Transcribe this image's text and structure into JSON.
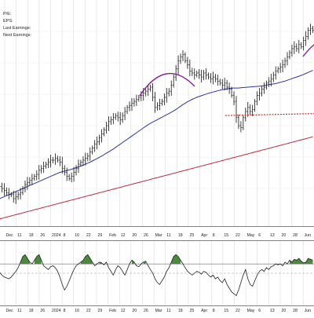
{
  "info_panel": {
    "pe_label": "P/E:",
    "eps_label": "EPS:",
    "last_earnings_label": "Last Earnings:",
    "next_earnings_label": "Next Earnings:"
  },
  "colors": {
    "bars": "#111111",
    "ma_short": "#2b35a0",
    "ma_long": "#c0283c",
    "arc": "#8a1f9e",
    "support": "#d11a1a",
    "osc_line": "#222222",
    "osc_fill": "#4a8a3c",
    "grid": "#d6d6d6"
  },
  "chart_data": [
    {
      "type": "ohlc",
      "panel": "price",
      "x_labels": [
        "Dec",
        "11",
        "18",
        "26",
        "2024",
        "8",
        "16",
        "22",
        "29",
        "Feb",
        "12",
        "20",
        "26",
        "Mar",
        "11",
        "18",
        "25",
        "Apr",
        "8",
        "15",
        "22",
        "May",
        "6",
        "13",
        "20",
        "28",
        "Jun"
      ],
      "series": [
        {
          "role": "price bars",
          "values": [
            18,
            17,
            16,
            15,
            14,
            14,
            12,
            13,
            14,
            15,
            17,
            19,
            20,
            21,
            22,
            23,
            24,
            26,
            27,
            28,
            29,
            30,
            31,
            31,
            32,
            31,
            30,
            27,
            25,
            23,
            22,
            23,
            25,
            27,
            29,
            30,
            31,
            32,
            33,
            35,
            37,
            39,
            40,
            42,
            44,
            46,
            48,
            50,
            51,
            52,
            53,
            52,
            51,
            53,
            55,
            57,
            58,
            59,
            60,
            61,
            62,
            63,
            64,
            65,
            66,
            67,
            62,
            57,
            58,
            59,
            60,
            62,
            64,
            65,
            68,
            72,
            76,
            80,
            82,
            83,
            80,
            78,
            75,
            74,
            73,
            74,
            73,
            72,
            74,
            73,
            72,
            71,
            72,
            71,
            70,
            69,
            68,
            69,
            67,
            66,
            63,
            60,
            52,
            48,
            47,
            52,
            55,
            57,
            55,
            56,
            60,
            63,
            64,
            66,
            67,
            69,
            70,
            71,
            73,
            75,
            76,
            77,
            78,
            80,
            82,
            84,
            86,
            87,
            86,
            88,
            87,
            90,
            92,
            95,
            96,
            95
          ]
        },
        {
          "role": "moving average (short)",
          "values": [
            12,
            12.5,
            13,
            13.5,
            14,
            14.5,
            15,
            15.5,
            16,
            16.5,
            17,
            17.5,
            18,
            18.5,
            19,
            19.5,
            20,
            20.5,
            21,
            21.5,
            22,
            22.5,
            23,
            23.5,
            24,
            24.5,
            25,
            25.3,
            25.6,
            25.9,
            26.2,
            26.5,
            26.9,
            27.3,
            27.7,
            28.1,
            28.5,
            29.0,
            29.5,
            30.0,
            30.6,
            31.2,
            31.8,
            32.4,
            33.0,
            33.7,
            34.4,
            35.1,
            35.8,
            36.5,
            37.3,
            38.1,
            38.9,
            39.7,
            40.5,
            41.3,
            42.1,
            42.9,
            43.7,
            44.5,
            45.3,
            46.1,
            46.9,
            47.7,
            48.5,
            49.2,
            49.8,
            50.4,
            51.0,
            51.6,
            52.2,
            52.8,
            53.4,
            54.0,
            54.6,
            55.3,
            56.0,
            56.8,
            57.6,
            58.4,
            59.1,
            59.8,
            60.4,
            61.0,
            61.5,
            62.0,
            62.4,
            62.8,
            63.2,
            63.6,
            64.0,
            64.3,
            64.6,
            64.9,
            65.2,
            65.5,
            65.8,
            66.0,
            66.2,
            66.4,
            66.5,
            66.6,
            66.6,
            66.6,
            66.7,
            66.8,
            66.9,
            67.0,
            67.1,
            67.2,
            67.3,
            67.4,
            67.5,
            67.6,
            67.8,
            68.0,
            68.2,
            68.4,
            68.6,
            68.8,
            69.1,
            69.4,
            69.7,
            70.0,
            70.4,
            70.8,
            71.2,
            71.6,
            72.0,
            72.4,
            72.8,
            73.3,
            73.8,
            74.3,
            74.8,
            75.3
          ]
        },
        {
          "role": "moving average (long)",
          "values": [
            2,
            2.3,
            2.6,
            2.9,
            3.2,
            3.5,
            3.8,
            4.1,
            4.4,
            4.7,
            5.0,
            5.3,
            5.6,
            5.9,
            6.2,
            6.5,
            6.8,
            7.1,
            7.4,
            7.7,
            8.0,
            8.3,
            8.6,
            8.9,
            9.2,
            9.5,
            9.8,
            10.1,
            10.4,
            10.7,
            11.0,
            11.3,
            11.6,
            11.9,
            12.2,
            12.5,
            12.8,
            13.1,
            13.4,
            13.7,
            14.0,
            14.3,
            14.6,
            14.9,
            15.2,
            15.5,
            15.8,
            16.1,
            16.4,
            16.7,
            17.0,
            17.3,
            17.6,
            17.9,
            18.2,
            18.5,
            18.8,
            19.1,
            19.4,
            19.7,
            20.0,
            20.3,
            20.6,
            20.9,
            21.2,
            21.5,
            21.8,
            22.1,
            22.4,
            22.7,
            23.0,
            23.3,
            23.6,
            23.9,
            24.2,
            24.5,
            24.8,
            25.1,
            25.4,
            25.7,
            26.0,
            26.3,
            26.6,
            26.9,
            27.2,
            27.5,
            27.8,
            28.1,
            28.4,
            28.7,
            29.0,
            29.3,
            29.6,
            29.9,
            30.2,
            30.5,
            30.8,
            31.1,
            31.4,
            31.7,
            32.0,
            32.3,
            32.6,
            32.9,
            33.2,
            33.5,
            33.8,
            34.1,
            34.4,
            34.7,
            35.0,
            35.3,
            35.6,
            35.9,
            36.2,
            36.5,
            36.8,
            37.1,
            37.4,
            37.7,
            38.0,
            38.3,
            38.6,
            38.9,
            39.2,
            39.5,
            39.8,
            40.1,
            40.4,
            40.7,
            41.0,
            41.3,
            41.6,
            41.9,
            42.2,
            42.5
          ]
        }
      ],
      "support_level": 53
    },
    {
      "type": "area",
      "panel": "oscillator",
      "x_labels": [
        "Dec",
        "11",
        "18",
        "26",
        "2024",
        "8",
        "16",
        "22",
        "29",
        "Feb",
        "12",
        "20",
        "26",
        "Mar",
        "11",
        "18",
        "25",
        "Apr",
        "8",
        "15",
        "22",
        "May",
        "6",
        "13",
        "20",
        "28",
        "Jun"
      ],
      "series": [
        {
          "role": "oscillator",
          "values": [
            0.05,
            -0.1,
            -0.2,
            -0.25,
            -0.3,
            -0.2,
            -0.05,
            0.1,
            0.3,
            0.6,
            0.9,
            1.0,
            0.8,
            0.6,
            0.5,
            0.7,
            0.9,
            1.0,
            0.7,
            0.4,
            0.3,
            0.2,
            0.35,
            0.4,
            0.3,
            0.1,
            -0.2,
            -0.6,
            -0.9,
            -0.7,
            -0.4,
            -0.1,
            0.2,
            0.4,
            0.5,
            0.6,
            0.7,
            0.9,
            1.0,
            0.8,
            0.6,
            0.4,
            0.5,
            0.6,
            0.55,
            0.45,
            0.6,
            0.3,
            0.1,
            -0.1,
            0.2,
            0.4,
            0.3,
            0.1,
            -0.1,
            0.2,
            0.5,
            0.7,
            0.6,
            0.4,
            0.35,
            0.5,
            0.6,
            0.65,
            0.4,
            0.2,
            0.0,
            -0.3,
            -0.5,
            -0.6,
            -0.4,
            -0.2,
            0.1,
            0.3,
            0.6,
            0.9,
            1.0,
            0.9,
            0.7,
            0.5,
            0.3,
            0.1,
            0.0,
            -0.1,
            0.0,
            0.1,
            0.05,
            -0.05,
            0.1,
            0.05,
            -0.1,
            -0.2,
            -0.1,
            -0.3,
            -0.2,
            -0.4,
            -0.5,
            -0.3,
            -0.6,
            -0.8,
            -1.0,
            -1.1,
            -1.2,
            -0.9,
            -0.5,
            -0.1,
            0.2,
            -0.3,
            -0.6,
            -0.7,
            -0.4,
            -0.1,
            0.1,
            0.2,
            0.1,
            0.3,
            0.2,
            0.35,
            0.4,
            0.5,
            0.45,
            0.5,
            0.4,
            0.6,
            0.5,
            0.7,
            0.6,
            0.75,
            0.7,
            0.8,
            0.65,
            0.55,
            0.6,
            0.8,
            0.75,
            0.7
          ]
        }
      ],
      "threshold": 0.5
    }
  ]
}
